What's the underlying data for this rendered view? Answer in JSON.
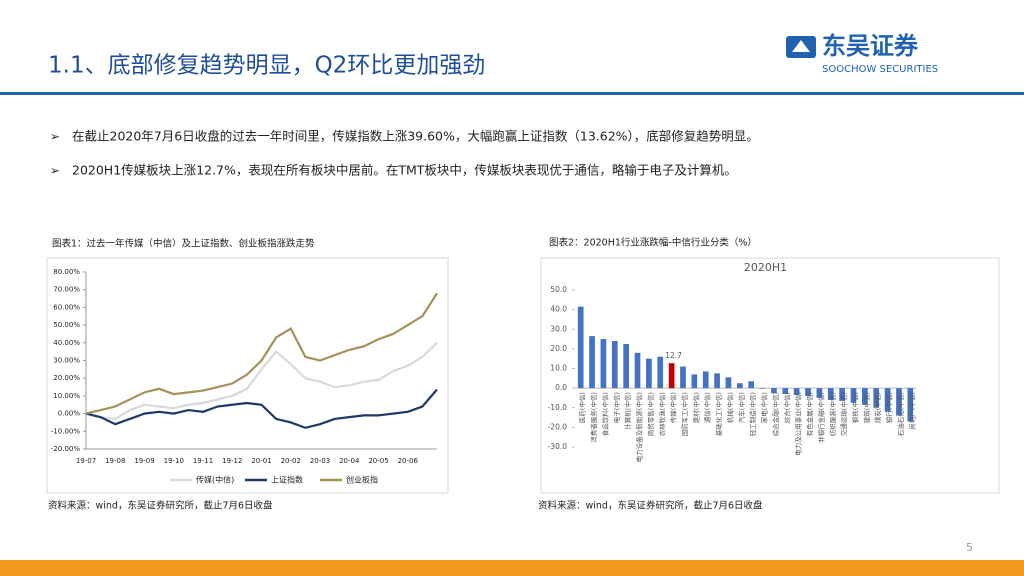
{
  "header": {
    "title": "1.1、底部修复趋势明显，Q2环比更加强劲",
    "logo_cn": "东吴证券",
    "logo_en": "SOOCHOW SECURITIES"
  },
  "bullets": [
    "在截止2020年7月6日收盘的过去一年时间里，传媒指数上涨39.60%，大幅跑赢上证指数（13.62%），底部修复趋势明显。",
    "2020H1传媒板块上涨12.7%，表现在所有板块中居前。在TMT板块中，传媒板块表现优于通信，略输于电子及计算机。"
  ],
  "chart_data": [
    {
      "type": "line",
      "title": "图表1：过去一年传媒（中信）及上证指数、创业板指涨跌走势",
      "source": "资料来源：wind，东吴证券研究所，截止7月6日收盘",
      "categories": [
        "19-07",
        null,
        "19-08",
        null,
        "19-09",
        null,
        "19-10",
        null,
        "19-11",
        null,
        "19-12",
        null,
        "20-01",
        null,
        "20-02",
        null,
        "20-03",
        null,
        "20-04",
        null,
        "20-05",
        null,
        "20-06",
        null,
        null
      ],
      "series": [
        {
          "name": "传媒(中信)",
          "color": "#d9d9d9",
          "values": [
            0,
            -2,
            -3,
            2,
            5,
            4,
            3,
            5,
            6,
            8,
            10,
            14,
            25,
            35,
            28,
            20,
            18,
            15,
            16,
            18,
            19,
            24,
            27,
            32,
            40
          ]
        },
        {
          "name": "上证指数",
          "color": "#1f3864",
          "values": [
            0,
            -2,
            -6,
            -3,
            0,
            1,
            0,
            2,
            1,
            4,
            5,
            6,
            5,
            -3,
            -5,
            -8,
            -6,
            -3,
            -2,
            -1,
            -1,
            0,
            1,
            4,
            13.6
          ]
        },
        {
          "name": "创业板指",
          "color": "#a6915a",
          "values": [
            0,
            2,
            4,
            8,
            12,
            14,
            11,
            12,
            13,
            15,
            17,
            22,
            30,
            43,
            48,
            32,
            30,
            33,
            36,
            38,
            42,
            45,
            50,
            55,
            68
          ]
        }
      ],
      "ylim": [
        -20,
        80
      ],
      "yticks": [
        {
          "value": -20,
          "label": "-20.00%"
        },
        {
          "value": -10,
          "label": "-10.00%"
        },
        {
          "value": 0,
          "label": "0.00%"
        },
        {
          "value": 10,
          "label": "10.00%"
        },
        {
          "value": 20,
          "label": "20.00%"
        },
        {
          "value": 30,
          "label": "30.00%"
        },
        {
          "value": 40,
          "label": "40.00%"
        },
        {
          "value": 50,
          "label": "50.00%"
        },
        {
          "value": 60,
          "label": "60.00%"
        },
        {
          "value": 70,
          "label": "70.00%"
        },
        {
          "value": 80,
          "label": "80.00%"
        }
      ],
      "legend": "bottom"
    },
    {
      "type": "bar",
      "title": "图表2：2020H1行业涨跌幅-中信行业分类（%）",
      "subtitle": "2020H1",
      "source": "资料来源：wind，东吴证券研究所，截止7月6日收盘",
      "categories": [
        "医药(中信)",
        "消费者服务(中信)",
        "食品饮料(中信)",
        "电子(中信)",
        "计算机(中信)",
        "电力设备及新能源(中信)",
        "商贸零售(中信)",
        "农林牧渔(中信)",
        "传媒(中信)",
        "国防军工(中信)",
        "建材(中信)",
        "通信(中信)",
        "基础化工(中信)",
        "机械(中信)",
        "汽车(中信)",
        "轻工制造(中信)",
        "家电(中信)",
        "综合金融(中信)",
        "综合(中信)",
        "电力及公用事业(中信)",
        "有色金属(中信)",
        "非银行金融(中信)",
        "纺织服装(中信)",
        "交通运输(中信)",
        "钢铁(中信)",
        "建筑(中信)",
        "煤炭(中信)",
        "银行(中信)",
        "石油石化(中信)",
        "房地产(中信)"
      ],
      "values": [
        41.5,
        26.5,
        25,
        24,
        22.5,
        18,
        15,
        16,
        12.7,
        11,
        7,
        8.5,
        7.5,
        5.5,
        2.5,
        3.5,
        -0.3,
        -2.5,
        -3,
        -3.5,
        -4,
        -5,
        -6,
        -6.5,
        -7.5,
        -8.5,
        -10,
        -12,
        -14,
        -17
      ],
      "colors": [
        "#4472c4",
        "#4472c4",
        "#4472c4",
        "#4472c4",
        "#4472c4",
        "#4472c4",
        "#4472c4",
        "#4472c4",
        "#c00000",
        "#4472c4",
        "#4472c4",
        "#4472c4",
        "#4472c4",
        "#4472c4",
        "#4472c4",
        "#4472c4",
        "#4472c4",
        "#4472c4",
        "#4472c4",
        "#4472c4",
        "#4472c4",
        "#4472c4",
        "#4472c4",
        "#4472c4",
        "#4472c4",
        "#4472c4",
        "#4472c4",
        "#4472c4",
        "#4472c4",
        "#4472c4"
      ],
      "ylim": [
        -30,
        50
      ],
      "yticks": [
        {
          "value": -30,
          "label": "-30.0"
        },
        {
          "value": -20,
          "label": "-20.0"
        },
        {
          "value": -10,
          "label": "-10.0"
        },
        {
          "value": 0,
          "label": "0.0"
        },
        {
          "value": 10,
          "label": "10.0"
        },
        {
          "value": 20,
          "label": "20.0"
        },
        {
          "value": 30,
          "label": "30.0"
        },
        {
          "value": 40,
          "label": "40.0"
        },
        {
          "value": 50,
          "label": "50.0"
        }
      ]
    }
  ],
  "page_number": "5"
}
